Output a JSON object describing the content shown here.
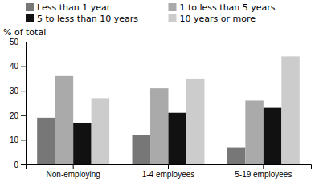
{
  "chart_data": {
    "type": "bar",
    "ylabel": "% of total",
    "categories": [
      "Non-employing",
      "1-4 employees",
      "5-19 employees"
    ],
    "series": [
      {
        "name": "Less than 1 year",
        "color": "#777777",
        "values": [
          19,
          12,
          7
        ]
      },
      {
        "name": "1 to less than 5 years",
        "color": "#aaaaaa",
        "values": [
          36,
          31,
          26
        ]
      },
      {
        "name": "5 to less than 10 years",
        "color": "#111111",
        "values": [
          17,
          21,
          23
        ]
      },
      {
        "name": "10 years or more",
        "color": "#cccccc",
        "values": [
          27,
          35,
          44
        ]
      }
    ],
    "ylim": [
      0,
      50
    ],
    "yticks": [
      0,
      10,
      20,
      30,
      40,
      50
    ],
    "grid": false,
    "legend": "top"
  }
}
